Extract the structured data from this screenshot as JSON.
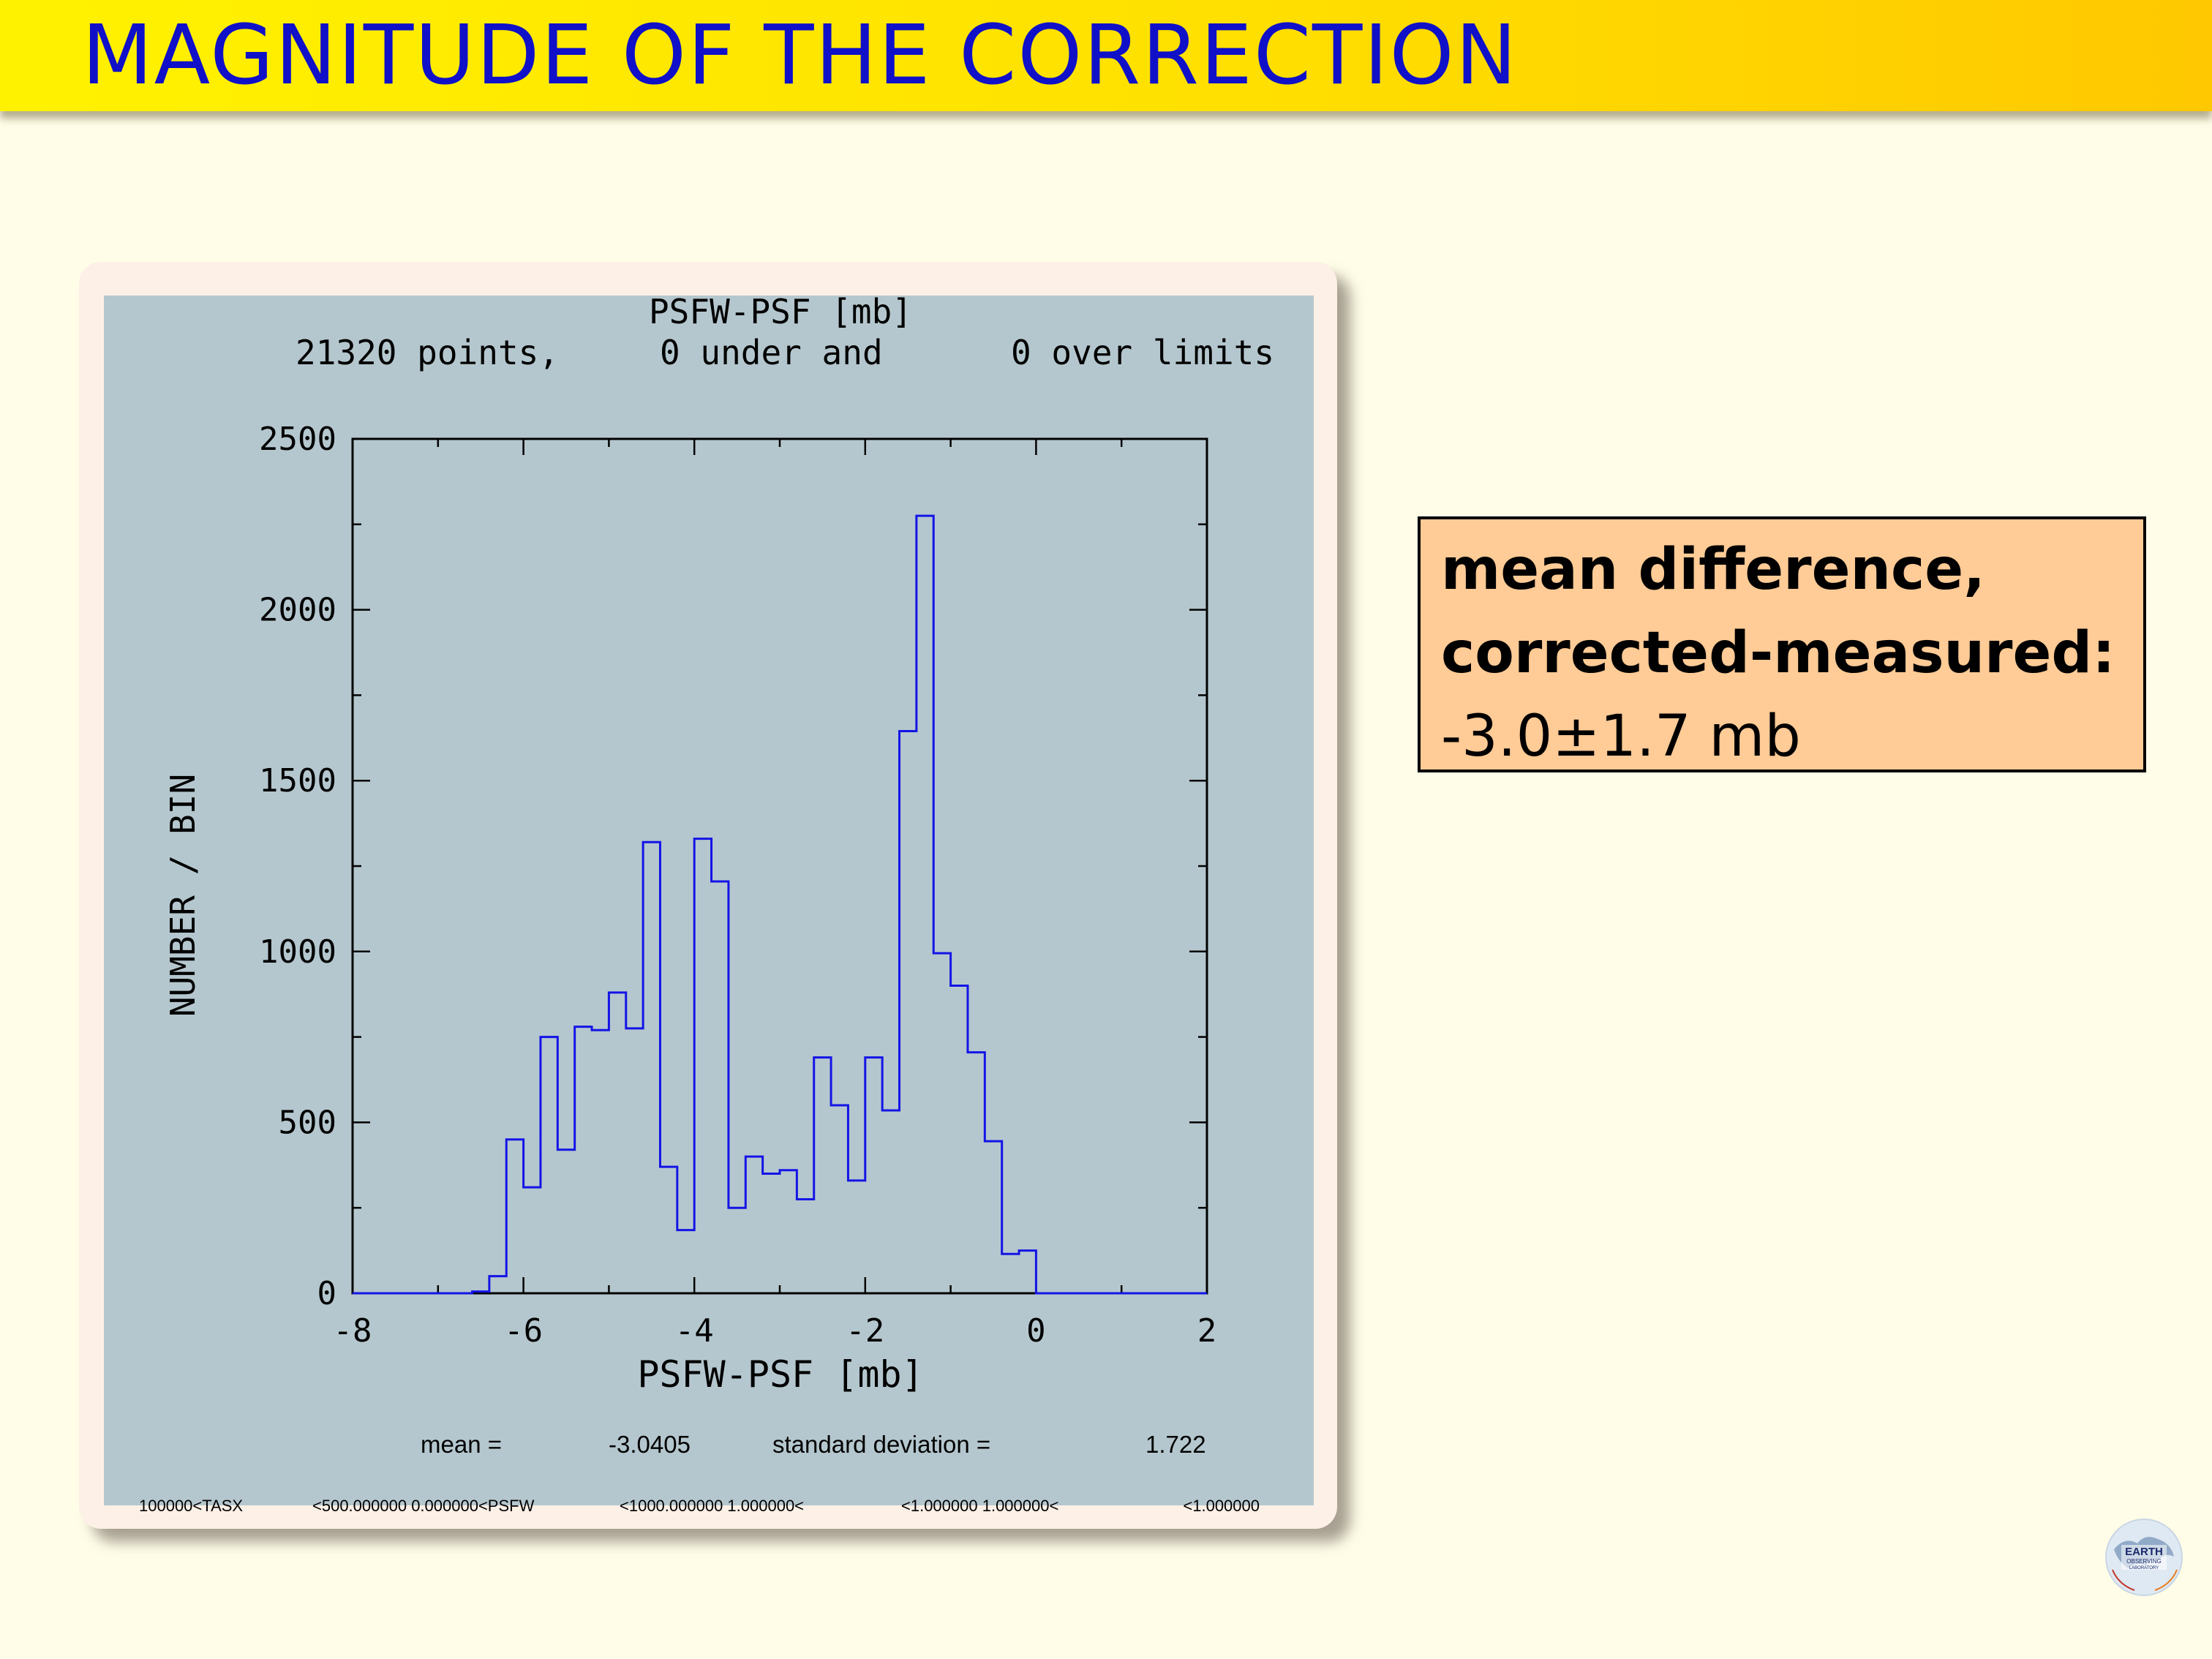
{
  "slide": {
    "title": "MAGNITUDE OF THE CORRECTION"
  },
  "annotation": {
    "line1": "mean difference,",
    "line2": "corrected-measured:",
    "value": "-3.0±1.7 mb"
  },
  "logo": {
    "text_line1": "EARTH",
    "text_line2": "OBSERVING",
    "text_line3": "LABORATORY",
    "icon": "globe-logo-icon"
  },
  "chart_data": {
    "type": "histogram",
    "title": "PSFW-PSF [mb]",
    "subtitle_points": "21320 points,",
    "subtitle_under": "0 under and",
    "subtitle_over": "0 over limits",
    "xlabel": "PSFW-PSF [mb]",
    "ylabel": "NUMBER / BIN",
    "xlim": [
      -8,
      2
    ],
    "ylim": [
      0,
      2500
    ],
    "xticks": [
      "-8",
      "-6",
      "-4",
      "-2",
      "0",
      "2"
    ],
    "yticks": [
      "0",
      "500",
      "1000",
      "1500",
      "2000",
      "2500"
    ],
    "bin_edges": [
      -8.0,
      -7.8,
      -7.6,
      -7.4,
      -7.2,
      -7.0,
      -6.8,
      -6.6,
      -6.4,
      -6.2,
      -6.0,
      -5.8,
      -5.6,
      -5.4,
      -5.2,
      -5.0,
      -4.8,
      -4.6,
      -4.4,
      -4.2,
      -4.0,
      -3.8,
      -3.6,
      -3.4,
      -3.2,
      -3.0,
      -2.8,
      -2.6,
      -2.4,
      -2.2,
      -2.0,
      -1.8,
      -1.6,
      -1.4,
      -1.2,
      -1.0,
      -0.8,
      -0.6,
      -0.4,
      -0.2,
      0.0,
      0.2,
      0.4,
      0.6,
      0.8,
      1.0,
      1.2,
      1.4,
      1.6,
      1.8,
      2.0
    ],
    "counts": [
      0,
      0,
      0,
      0,
      0,
      0,
      0,
      5,
      50,
      450,
      310,
      750,
      420,
      780,
      770,
      880,
      775,
      1320,
      370,
      185,
      1330,
      1205,
      250,
      400,
      350,
      360,
      275,
      690,
      550,
      330,
      690,
      535,
      1645,
      2275,
      995,
      900,
      705,
      445,
      115,
      125,
      0,
      0,
      0,
      0,
      0,
      0,
      0,
      0,
      0,
      0
    ],
    "line_color": "#1414e6",
    "ylabel_color": "#1414e6",
    "stats": {
      "mean_label": "mean =",
      "mean_value": "-3.0405",
      "sd_label": "standard deviation =",
      "sd_value": "1.722"
    },
    "footer_fragments": [
      "100000<TASX",
      "<500.000000 0.000000<PSFW",
      "<1000.000000 1.000000<",
      "<1.000000 1.000000<",
      "<1.000000"
    ]
  }
}
